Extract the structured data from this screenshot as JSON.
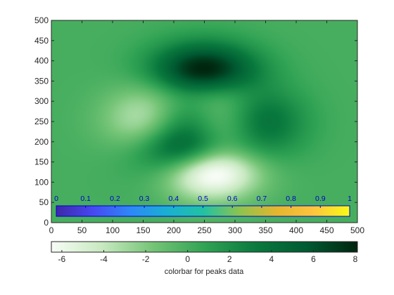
{
  "chart_data": [
    {
      "type": "heatmap",
      "title": "",
      "xlabel": "",
      "ylabel": "",
      "xlim": [
        0,
        500
      ],
      "ylim": [
        0,
        500
      ],
      "xticks": [
        "0",
        "50",
        "100",
        "150",
        "200",
        "250",
        "300",
        "350",
        "400",
        "450",
        "500"
      ],
      "yticks": [
        "0",
        "50",
        "100",
        "150",
        "200",
        "250",
        "300",
        "350",
        "400",
        "450",
        "500"
      ],
      "data_function": "peaks",
      "grid": false,
      "colormap": [
        "#f7fcf5",
        "#c7e9c0",
        "#74c476",
        "#31a354",
        "#0a7a3e",
        "#005a32",
        "#00250f"
      ],
      "color_range": [
        -6.5,
        8.1
      ]
    },
    {
      "type": "colorbar",
      "caption": "colorbar for peaks data",
      "orientation": "horizontal",
      "placement": "below",
      "range": [
        -6.5,
        8.1
      ],
      "ticks": [
        "-6",
        "-4",
        "-2",
        "0",
        "2",
        "4",
        "6",
        "8"
      ],
      "colormap": [
        "#f7fcf5",
        "#c7e9c0",
        "#74c476",
        "#31a354",
        "#0a7a3e",
        "#005a32",
        "#00250f"
      ]
    },
    {
      "type": "colorbar",
      "caption": "",
      "orientation": "horizontal",
      "placement": "inside-bottom",
      "range": [
        0,
        1
      ],
      "ticks": [
        "0",
        "0.1",
        "0.2",
        "0.3",
        "0.4",
        "0.5",
        "0.6",
        "0.7",
        "0.8",
        "0.9",
        "1"
      ],
      "colormap": [
        "#3e26a8",
        "#4748f0",
        "#2e87f7",
        "#1aafd2",
        "#21c2a2",
        "#8dc34e",
        "#e3b62c",
        "#fdc43c",
        "#f9fb15"
      ],
      "label_color": "#0000cc"
    }
  ]
}
